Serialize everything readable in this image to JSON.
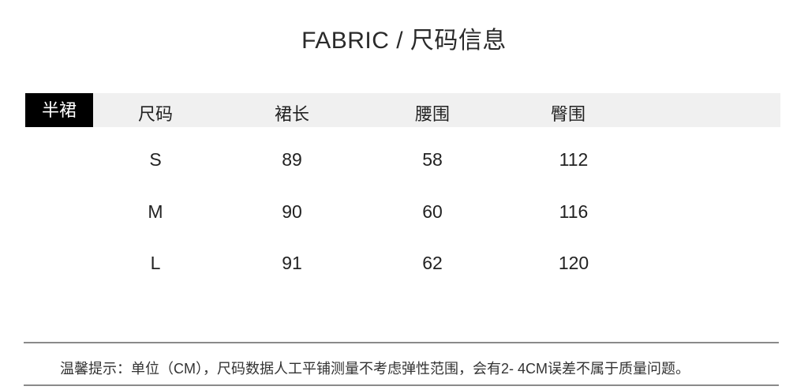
{
  "title": "FABRIC /  尺码信息",
  "table": {
    "category_label": "半裙",
    "headers": [
      "尺码",
      "裙长",
      "腰围",
      "臀围"
    ],
    "rows": [
      [
        "S",
        "89",
        "58",
        "112"
      ],
      [
        "M",
        "90",
        "60",
        "116"
      ],
      [
        "L",
        "91",
        "62",
        "120"
      ]
    ]
  },
  "note": "温馨提示：单位（CM），尺码数据人工平铺测量不考虑弹性范围，会有2- 4CM误差不属于质量问题。",
  "colors": {
    "header_band": "#f0f0f0",
    "category_tag": "#000000",
    "divider": "#8a8a8a"
  }
}
